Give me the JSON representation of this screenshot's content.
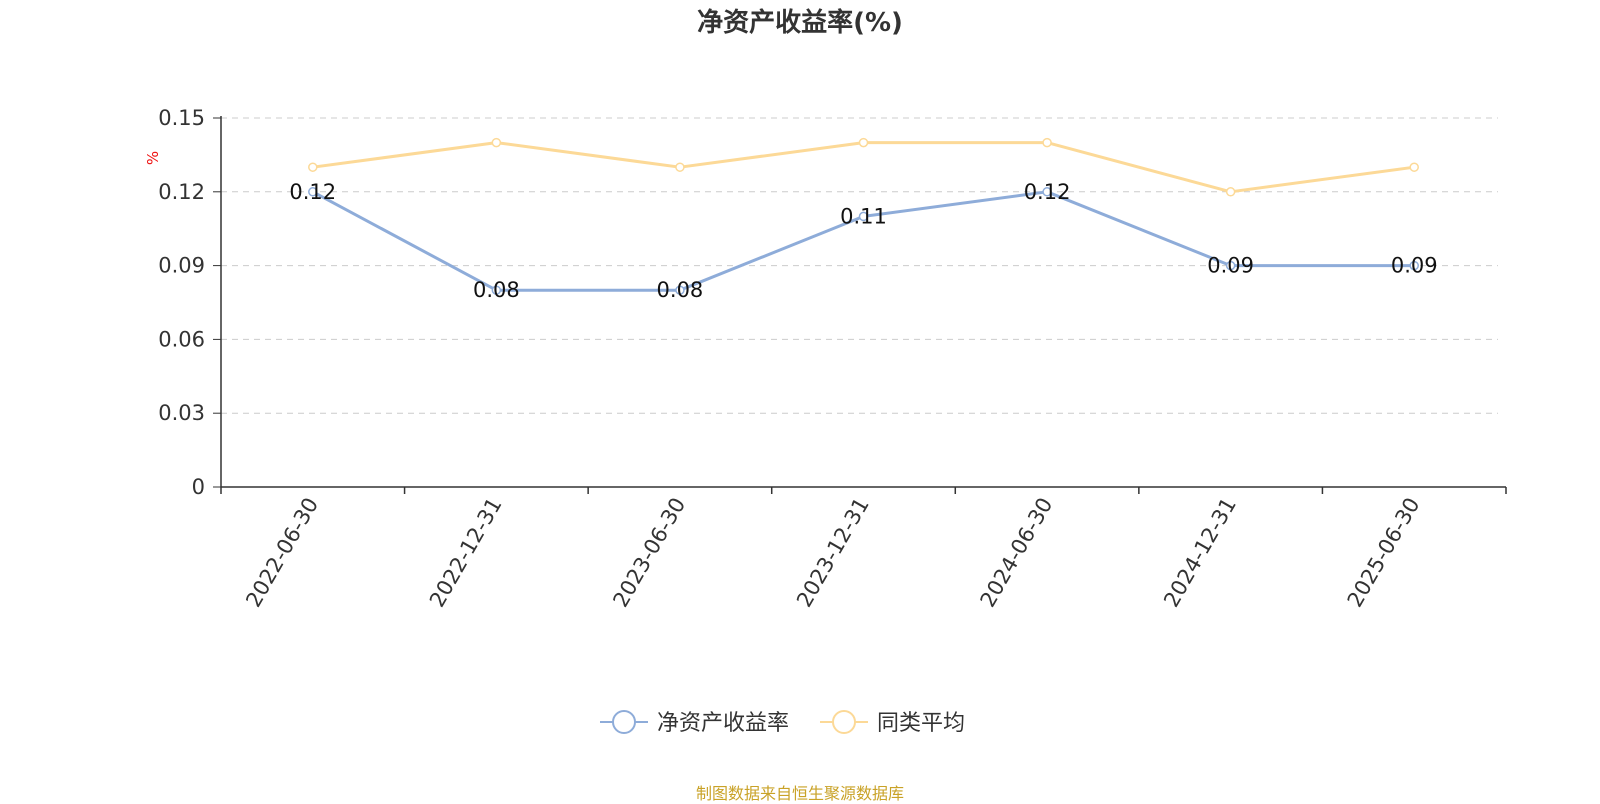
{
  "title": "净资产收益率(%)",
  "y_unit": "%",
  "source": "制图数据来自恒生聚源数据库",
  "colors": {
    "series1": "#8eacd9",
    "series2": "#fcd997",
    "unit": "#ee1111",
    "source": "#c9a227"
  },
  "chart_data": {
    "type": "line",
    "title": "净资产收益率(%)",
    "xlabel": "",
    "ylabel": "%",
    "categories": [
      "2022-06-30",
      "2022-12-31",
      "2023-06-30",
      "2023-12-31",
      "2024-06-30",
      "2024-12-31",
      "2025-06-30"
    ],
    "ylim": [
      0,
      0.15
    ],
    "yticks": [
      "0",
      "0.03",
      "0.06",
      "0.09",
      "0.12",
      "0.15"
    ],
    "grid": true,
    "legend_position": "bottom-center",
    "series": [
      {
        "name": "净资产收益率",
        "values": [
          0.12,
          0.08,
          0.08,
          0.11,
          0.12,
          0.09,
          0.09
        ],
        "labels": [
          "0.12",
          "0.08",
          "0.08",
          "0.11",
          "0.12",
          "0.09",
          "0.09"
        ],
        "show_labels": true
      },
      {
        "name": "同类平均",
        "values": [
          0.13,
          0.14,
          0.13,
          0.14,
          0.14,
          0.12,
          0.13
        ],
        "show_labels": false
      }
    ]
  }
}
